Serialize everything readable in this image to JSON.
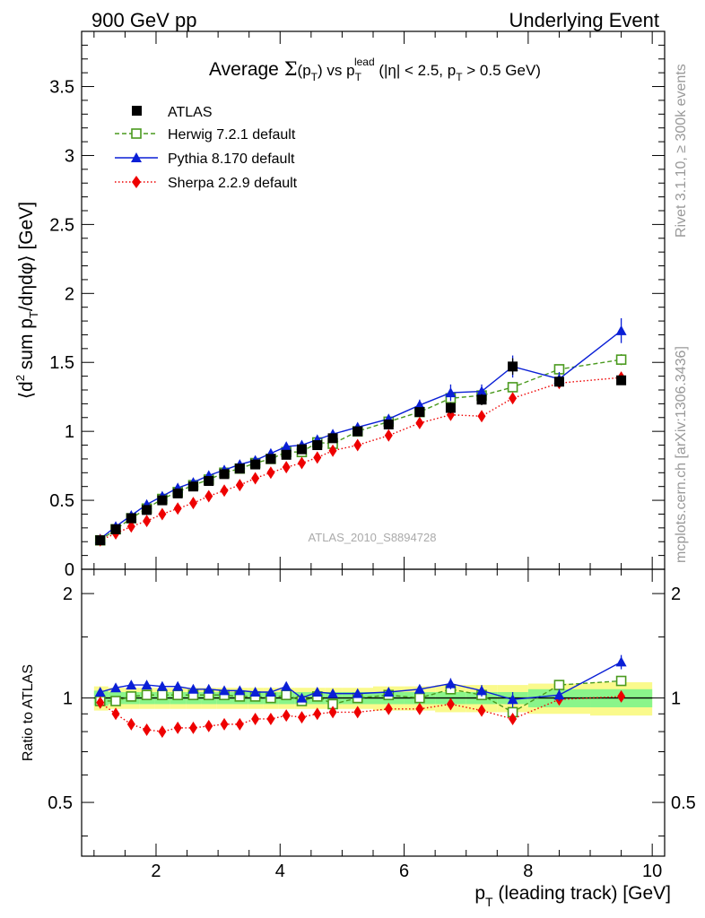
{
  "header": {
    "left_label": "900 GeV pp",
    "right_label": "Underlying Event"
  },
  "side_labels": {
    "rivet": "Rivet 3.1.10, ≥ 300k events",
    "mcplots": "mcplots.cern.ch [arXiv:1306.3436]"
  },
  "watermark": "ATLAS_2010_S8894728",
  "colors": {
    "atlas": "#000000",
    "herwig": "#4a9a1e",
    "pythia": "#0a1fd6",
    "sherpa": "#ee0000",
    "band_inner": "#8af58a",
    "band_outer": "#fafa8c"
  },
  "chart_data": [
    {
      "type": "line",
      "panel": "main",
      "title": {
        "prefix": "Average ",
        "sigma": "Σ",
        "sigma_arg": "(p",
        "sigma_sub": "T",
        "sigma_close": ")",
        "vs": " vs p",
        "vs_sub": "T",
        "vs_sup": "lead",
        "suffix_a": " (|η| < 2.5, p",
        "suffix_sub": "T",
        "suffix_b": " > 0.5 GeV)"
      },
      "ylabel": {
        "a": "⟨d",
        "sup": "2",
        "b": " sum p",
        "sub": "T",
        "c": "/dηdφ⟩ [GeV]"
      },
      "xlim": [
        0.8,
        10.2
      ],
      "ylim": [
        0,
        3.9
      ],
      "yticks": [
        0,
        0.5,
        1,
        1.5,
        2,
        2.5,
        3,
        3.5
      ],
      "ytick_labels": [
        "0",
        "0.5",
        "1",
        "1.5",
        "2",
        "2.5",
        "3",
        "3.5"
      ],
      "legend_position": "top-left",
      "x": [
        1.1,
        1.35,
        1.6,
        1.85,
        2.1,
        2.35,
        2.6,
        2.85,
        3.1,
        3.35,
        3.6,
        3.85,
        4.1,
        4.35,
        4.6,
        4.85,
        5.25,
        5.75,
        6.25,
        6.75,
        7.25,
        7.75,
        8.5,
        9.5
      ],
      "series": [
        {
          "name": "ATLAS",
          "key": "atlas",
          "style": "square-filled",
          "values": [
            0.21,
            0.29,
            0.37,
            0.43,
            0.5,
            0.55,
            0.6,
            0.64,
            0.69,
            0.73,
            0.76,
            0.8,
            0.83,
            0.87,
            0.9,
            0.95,
            1.0,
            1.05,
            1.14,
            1.17,
            1.23,
            1.47,
            1.36,
            1.37
          ],
          "errors": [
            0.01,
            0.01,
            0.01,
            0.01,
            0.01,
            0.01,
            0.01,
            0.01,
            0.01,
            0.01,
            0.02,
            0.02,
            0.02,
            0.02,
            0.02,
            0.02,
            0.03,
            0.03,
            0.03,
            0.04,
            0.04,
            0.06,
            0.04,
            0.03
          ]
        },
        {
          "name": "Herwig 7.2.1 default",
          "key": "herwig",
          "style": "square-open-dashed",
          "values": [
            0.21,
            0.29,
            0.37,
            0.44,
            0.51,
            0.56,
            0.61,
            0.65,
            0.7,
            0.73,
            0.77,
            0.8,
            0.85,
            0.85,
            0.92,
            0.91,
            1.0,
            1.07,
            1.14,
            1.24,
            1.26,
            1.32,
            1.45,
            1.52
          ],
          "errors": [
            0.005,
            0.005,
            0.005,
            0.005,
            0.005,
            0.005,
            0.005,
            0.005,
            0.01,
            0.01,
            0.01,
            0.01,
            0.01,
            0.01,
            0.01,
            0.015,
            0.015,
            0.015,
            0.02,
            0.02,
            0.03,
            0.03,
            0.03,
            0.04
          ]
        },
        {
          "name": "Pythia 8.170 default",
          "key": "pythia",
          "style": "triangle-solid",
          "values": [
            0.22,
            0.31,
            0.39,
            0.47,
            0.53,
            0.59,
            0.63,
            0.68,
            0.72,
            0.76,
            0.79,
            0.84,
            0.89,
            0.9,
            0.94,
            0.98,
            1.03,
            1.09,
            1.19,
            1.28,
            1.29,
            1.47,
            1.38,
            1.73
          ],
          "errors": [
            0.005,
            0.005,
            0.01,
            0.01,
            0.01,
            0.01,
            0.01,
            0.01,
            0.01,
            0.01,
            0.015,
            0.015,
            0.015,
            0.02,
            0.02,
            0.02,
            0.02,
            0.03,
            0.04,
            0.06,
            0.05,
            0.08,
            0.05,
            0.09
          ]
        },
        {
          "name": "Sherpa 2.2.9 default",
          "key": "sherpa",
          "style": "diamond-dotted",
          "values": [
            0.21,
            0.26,
            0.31,
            0.35,
            0.4,
            0.44,
            0.48,
            0.53,
            0.57,
            0.61,
            0.66,
            0.7,
            0.74,
            0.77,
            0.81,
            0.86,
            0.9,
            0.97,
            1.06,
            1.12,
            1.11,
            1.24,
            1.35,
            1.39
          ],
          "errors": [
            0.005,
            0.005,
            0.005,
            0.005,
            0.005,
            0.005,
            0.005,
            0.005,
            0.01,
            0.01,
            0.01,
            0.01,
            0.01,
            0.01,
            0.01,
            0.015,
            0.015,
            0.02,
            0.02,
            0.03,
            0.03,
            0.03,
            0.03,
            0.04
          ]
        }
      ]
    },
    {
      "type": "line",
      "panel": "ratio",
      "ylabel": "Ratio to ATLAS",
      "xlabel": {
        "a": "p",
        "sub": "T",
        "b": " (leading track) [GeV]"
      },
      "xlim": [
        0.8,
        10.2
      ],
      "ylim": [
        0.35,
        2.35
      ],
      "log_y": true,
      "xticks": [
        2,
        4,
        6,
        8,
        10
      ],
      "xtick_labels": [
        "2",
        "4",
        "6",
        "8",
        "10"
      ],
      "yticks": [
        0.5,
        1,
        2
      ],
      "ytick_labels": [
        "0.5",
        "1",
        "2"
      ],
      "band": {
        "edges": [
          1.0,
          1.23,
          1.48,
          1.73,
          1.98,
          2.23,
          2.48,
          2.73,
          2.98,
          3.23,
          3.48,
          3.73,
          3.98,
          4.23,
          4.48,
          4.73,
          5.0,
          5.5,
          6.0,
          6.5,
          7.0,
          7.5,
          8.0,
          9.0,
          10.0
        ],
        "inner": [
          0.05,
          0.04,
          0.04,
          0.04,
          0.04,
          0.04,
          0.04,
          0.04,
          0.04,
          0.04,
          0.04,
          0.04,
          0.04,
          0.04,
          0.04,
          0.04,
          0.04,
          0.04,
          0.04,
          0.04,
          0.04,
          0.04,
          0.06,
          0.06
        ],
        "outer": [
          0.08,
          0.07,
          0.07,
          0.07,
          0.07,
          0.07,
          0.07,
          0.07,
          0.07,
          0.07,
          0.07,
          0.07,
          0.07,
          0.07,
          0.07,
          0.07,
          0.07,
          0.08,
          0.08,
          0.09,
          0.09,
          0.09,
          0.1,
          0.11
        ]
      },
      "x": [
        1.1,
        1.35,
        1.6,
        1.85,
        2.1,
        2.35,
        2.6,
        2.85,
        3.1,
        3.35,
        3.6,
        3.85,
        4.1,
        4.35,
        4.6,
        4.85,
        5.25,
        5.75,
        6.25,
        6.75,
        7.25,
        7.75,
        8.5,
        9.5
      ],
      "series": [
        {
          "name": "Herwig 7.2.1 default",
          "key": "herwig",
          "style": "square-open-dashed",
          "values": [
            0.98,
            0.98,
            1.01,
            1.02,
            1.02,
            1.02,
            1.02,
            1.02,
            1.02,
            1.01,
            1.01,
            1.0,
            1.02,
            0.98,
            1.01,
            0.96,
            1.0,
            1.02,
            1.0,
            1.06,
            1.02,
            0.91,
            1.09,
            1.12
          ],
          "errors": [
            0,
            0,
            0,
            0,
            0,
            0,
            0,
            0,
            0,
            0,
            0,
            0,
            0,
            0,
            0,
            0,
            0,
            0,
            0,
            0,
            0,
            0,
            0,
            0.02
          ]
        },
        {
          "name": "Pythia 8.170 default",
          "key": "pythia",
          "style": "triangle-solid",
          "values": [
            1.04,
            1.07,
            1.09,
            1.09,
            1.08,
            1.08,
            1.06,
            1.06,
            1.05,
            1.05,
            1.04,
            1.04,
            1.08,
            1.0,
            1.04,
            1.03,
            1.03,
            1.04,
            1.06,
            1.1,
            1.05,
            0.99,
            1.02,
            1.27
          ],
          "errors": [
            0.01,
            0.01,
            0.01,
            0.01,
            0.01,
            0.01,
            0.01,
            0.01,
            0.01,
            0.01,
            0.01,
            0.01,
            0.01,
            0.02,
            0.02,
            0.02,
            0.02,
            0.02,
            0.03,
            0.04,
            0.04,
            0.05,
            0.04,
            0.06
          ]
        },
        {
          "name": "Sherpa 2.2.9 default",
          "key": "sherpa",
          "style": "diamond-dotted",
          "values": [
            0.97,
            0.9,
            0.84,
            0.81,
            0.8,
            0.82,
            0.82,
            0.83,
            0.84,
            0.84,
            0.87,
            0.87,
            0.89,
            0.88,
            0.9,
            0.91,
            0.91,
            0.93,
            0.93,
            0.96,
            0.92,
            0.87,
            0.99,
            1.01
          ],
          "errors": [
            0,
            0,
            0,
            0,
            0,
            0,
            0,
            0,
            0,
            0,
            0,
            0,
            0,
            0,
            0,
            0,
            0,
            0,
            0,
            0,
            0,
            0,
            0,
            0
          ]
        }
      ]
    }
  ]
}
